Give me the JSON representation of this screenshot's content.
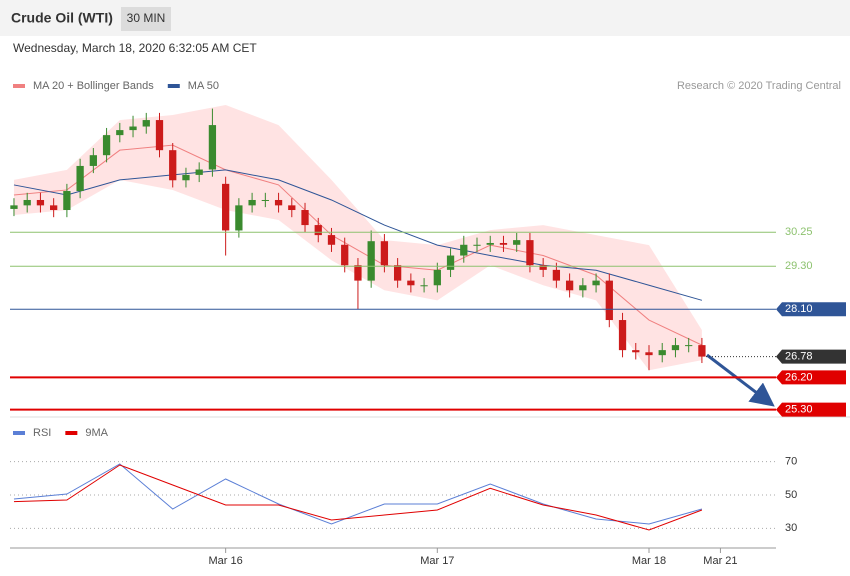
{
  "header": {
    "title": "Crude Oil (WTI)",
    "interval": "30 MIN",
    "date": "Wednesday, March 18, 2020 6:32:05 AM CET",
    "credit": "Research © 2020 Trading Central"
  },
  "chart_data": [
    {
      "type": "candlestick",
      "legend": [
        {
          "name": "MA 20 + Bollinger Bands",
          "color": "#f08080"
        },
        {
          "name": "MA 50",
          "color": "#2f5597"
        }
      ],
      "x": [
        0,
        1,
        2,
        3,
        4,
        5,
        6,
        7,
        8,
        9,
        10,
        11,
        12,
        13,
        14,
        15,
        16,
        17,
        18,
        19,
        20,
        21,
        22,
        23,
        24,
        25,
        26,
        27,
        28,
        29,
        30,
        31,
        32,
        33,
        34,
        35,
        36,
        37,
        38,
        39,
        40,
        41,
        42,
        43,
        44,
        45,
        46,
        47,
        48,
        49,
        50,
        51,
        52
      ],
      "open": [
        30.9,
        31.0,
        31.15,
        31.0,
        30.87,
        31.4,
        32.1,
        32.4,
        32.96,
        33.1,
        33.2,
        33.38,
        32.54,
        31.7,
        31.85,
        32.0,
        31.6,
        30.3,
        31.0,
        31.15,
        31.15,
        31.0,
        30.87,
        30.45,
        30.17,
        29.9,
        29.33,
        28.9,
        30.0,
        29.33,
        28.9,
        28.77,
        28.77,
        29.2,
        29.6,
        29.9,
        29.9,
        29.95,
        29.9,
        30.03,
        29.33,
        29.2,
        28.9,
        28.63,
        28.77,
        28.9,
        27.8,
        26.96,
        26.9,
        26.82,
        26.96,
        27.1,
        27.1
      ],
      "high": [
        31.2,
        31.35,
        31.35,
        31.2,
        31.6,
        32.3,
        32.6,
        33.16,
        33.3,
        33.5,
        33.58,
        33.58,
        32.74,
        32.05,
        32.2,
        33.7,
        31.8,
        31.2,
        31.35,
        31.35,
        31.35,
        31.2,
        31.07,
        30.65,
        30.37,
        30.1,
        29.53,
        30.3,
        30.2,
        29.53,
        29.1,
        28.97,
        29.4,
        29.8,
        30.15,
        30.1,
        30.15,
        30.15,
        30.23,
        30.23,
        29.53,
        29.4,
        29.1,
        28.97,
        29.1,
        29.1,
        28.0,
        27.16,
        27.1,
        27.16,
        27.3,
        27.3,
        27.3
      ],
      "low": [
        30.7,
        30.8,
        30.8,
        30.67,
        30.67,
        31.2,
        31.9,
        32.2,
        32.76,
        32.9,
        33.0,
        32.34,
        31.5,
        31.5,
        31.65,
        31.8,
        29.6,
        30.1,
        30.8,
        30.95,
        30.8,
        30.67,
        30.25,
        29.97,
        29.7,
        29.13,
        28.1,
        28.7,
        29.13,
        28.7,
        28.57,
        28.57,
        28.57,
        29.0,
        29.4,
        29.7,
        29.7,
        29.7,
        29.7,
        29.13,
        29.0,
        28.7,
        28.43,
        28.43,
        28.57,
        27.6,
        26.76,
        26.7,
        26.4,
        26.62,
        26.76,
        26.9,
        26.6
      ],
      "close": [
        31.0,
        31.15,
        31.0,
        30.87,
        31.4,
        32.1,
        32.4,
        32.96,
        33.1,
        33.2,
        33.38,
        32.54,
        31.7,
        31.85,
        32.0,
        33.24,
        30.3,
        31.0,
        31.15,
        31.15,
        31.0,
        30.87,
        30.45,
        30.17,
        29.9,
        29.33,
        28.9,
        30.0,
        29.33,
        28.9,
        28.77,
        28.77,
        29.2,
        29.6,
        29.9,
        29.9,
        29.95,
        29.9,
        30.03,
        29.33,
        29.2,
        28.9,
        28.63,
        28.77,
        28.9,
        27.8,
        26.96,
        26.9,
        26.82,
        26.96,
        27.1,
        27.1,
        26.78
      ],
      "up_color": "#3a8a2e",
      "down_color": "#cc1b1b",
      "ma_x": [
        0,
        4,
        8,
        12,
        16,
        20,
        24,
        28,
        32,
        36,
        40,
        44,
        48,
        52
      ],
      "ma20": [
        31.29,
        31.43,
        32.54,
        32.68,
        31.99,
        31.57,
        30.17,
        29.33,
        29.19,
        29.89,
        29.6,
        29.05,
        27.8,
        27.1
      ],
      "ma50": [
        31.57,
        31.29,
        31.71,
        31.85,
        31.99,
        31.71,
        31.15,
        30.45,
        29.89,
        29.6,
        29.33,
        29.19,
        28.77,
        28.35
      ],
      "band_upper": [
        31.71,
        31.99,
        33.38,
        33.52,
        33.8,
        33.24,
        31.71,
        30.03,
        29.89,
        30.31,
        30.45,
        30.17,
        29.89,
        27.52
      ],
      "band_lower": [
        30.73,
        30.87,
        31.71,
        31.43,
        30.87,
        30.59,
        29.47,
        28.63,
        28.35,
        29.33,
        28.77,
        28.35,
        26.4,
        26.68
      ],
      "band_color": "#ffdede",
      "levels": [
        {
          "value": 30.25,
          "label": "30.25",
          "color": "#8dc26f",
          "box": false
        },
        {
          "value": 29.3,
          "label": "29.30",
          "color": "#8dc26f",
          "box": false
        },
        {
          "value": 28.1,
          "label": "28.10",
          "color": "#2f5597",
          "box": true
        },
        {
          "value": 26.78,
          "label": "26.78",
          "color": "#333333",
          "box": true,
          "dotted": true
        },
        {
          "value": 26.2,
          "label": "26.20",
          "color": "#e00000",
          "box": true
        },
        {
          "value": 25.3,
          "label": "25.30",
          "color": "#e00000",
          "box": true
        }
      ],
      "xlim": [
        -0.3,
        57.6
      ],
      "ylim": [
        25.15,
        33.94
      ]
    },
    {
      "type": "line",
      "x": [
        0,
        4,
        8,
        12,
        16,
        20,
        24,
        28,
        32,
        36,
        40,
        44,
        48,
        52
      ],
      "series": [
        {
          "name": "RSI",
          "color": "#5b7fd6",
          "values": [
            47.6,
            50.6,
            68.6,
            41.6,
            59.6,
            44.6,
            32.6,
            44.6,
            44.6,
            56.6,
            44.6,
            35.6,
            32.6,
            41.6
          ]
        },
        {
          "name": "9MA",
          "color": "#e00000",
          "values": [
            46,
            47,
            68,
            56,
            44,
            44,
            35,
            38,
            41,
            54,
            44,
            38,
            29,
            41
          ]
        }
      ],
      "ylim": [
        20,
        80
      ],
      "yticks": [
        70,
        50,
        30
      ],
      "xlim": [
        -0.3,
        57.6
      ],
      "xticks": [
        {
          "value": 16,
          "label": "Mar 16"
        },
        {
          "value": 32,
          "label": "Mar 17"
        },
        {
          "value": 48,
          "label": "Mar 18"
        },
        {
          "value": 53.4,
          "label": "Mar 21"
        }
      ]
    }
  ]
}
